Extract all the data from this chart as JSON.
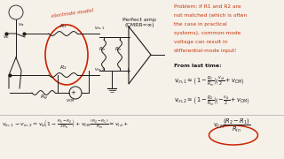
{
  "bg_color": "#f5f0e8",
  "problem_text_lines": [
    "Problem: if R1 and R2 are",
    "not matched (which is often",
    "the case in practical",
    "systems), common-mode",
    "voltage can result in",
    "differential-mode input!"
  ],
  "from_last_time": "From last time:",
  "perfect_amp_line1": "Perfect amp",
  "perfect_amp_line2": "(CMRR=∞)",
  "electrode_label": "electrode model",
  "text_color": "#c8360a",
  "black": "#1a1a1a",
  "red": "#cc2200"
}
